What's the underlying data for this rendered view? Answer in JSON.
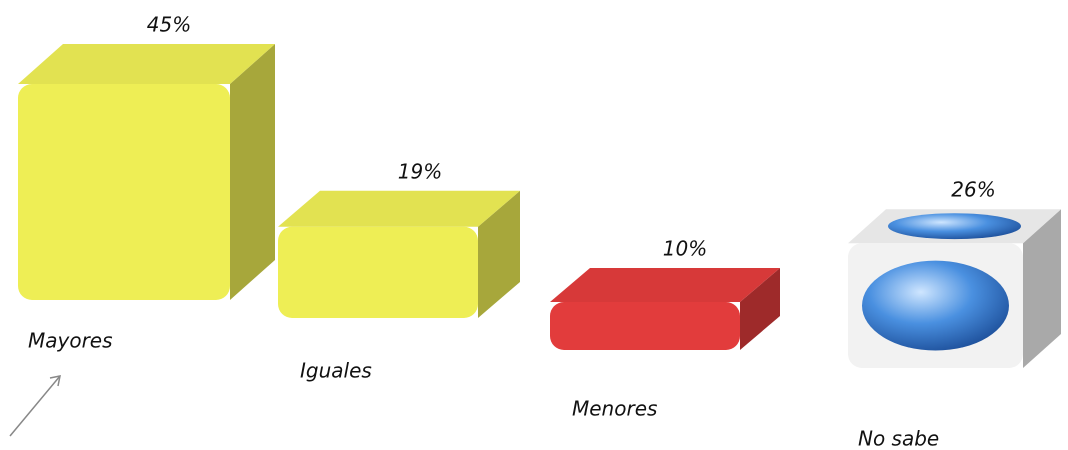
{
  "chart_data": {
    "type": "bar3d",
    "categories": [
      "Mayores",
      "Iguales",
      "Menores",
      "No sabe"
    ],
    "values": [
      45,
      19,
      10,
      26
    ],
    "value_labels": [
      "45%",
      "19%",
      "10%",
      "26%"
    ],
    "colors": [
      "#eeee55",
      "#eeee55",
      "#e23c3c",
      "#f2f2f2"
    ]
  }
}
